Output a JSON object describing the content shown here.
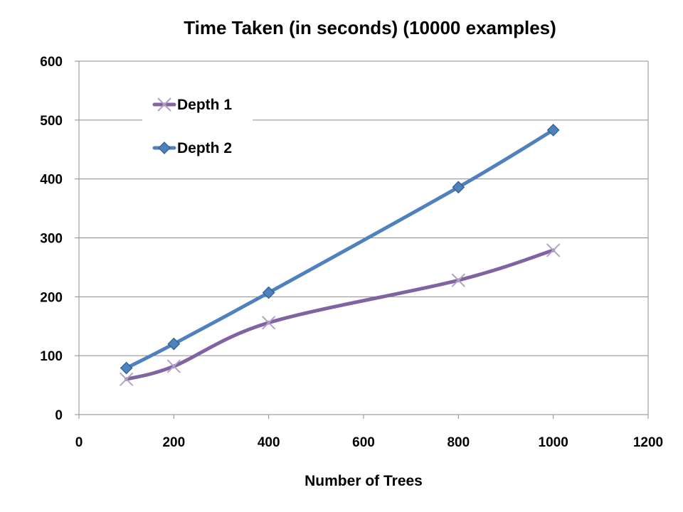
{
  "chart_data": {
    "type": "line",
    "title": "Time Taken (in seconds) (10000 examples)",
    "xlabel": "Number of Trees",
    "ylabel": "",
    "xlim": [
      0,
      1200
    ],
    "ylim": [
      0,
      600
    ],
    "xticks": [
      0,
      200,
      400,
      600,
      800,
      1000,
      1200
    ],
    "yticks": [
      0,
      100,
      200,
      300,
      400,
      500,
      600
    ],
    "grid": "horizontal",
    "legend_position": "top-left",
    "smooth": true,
    "series": [
      {
        "name": "Depth 1",
        "color": "#8064A2",
        "marker": "x",
        "x": [
          100,
          200,
          400,
          800,
          1000
        ],
        "y": [
          60,
          82,
          156,
          228,
          279
        ]
      },
      {
        "name": "Depth 2",
        "color": "#4F81BD",
        "marker": "diamond",
        "x": [
          100,
          200,
          400,
          800,
          1000
        ],
        "y": [
          79,
          120,
          207,
          386,
          483
        ]
      }
    ]
  }
}
